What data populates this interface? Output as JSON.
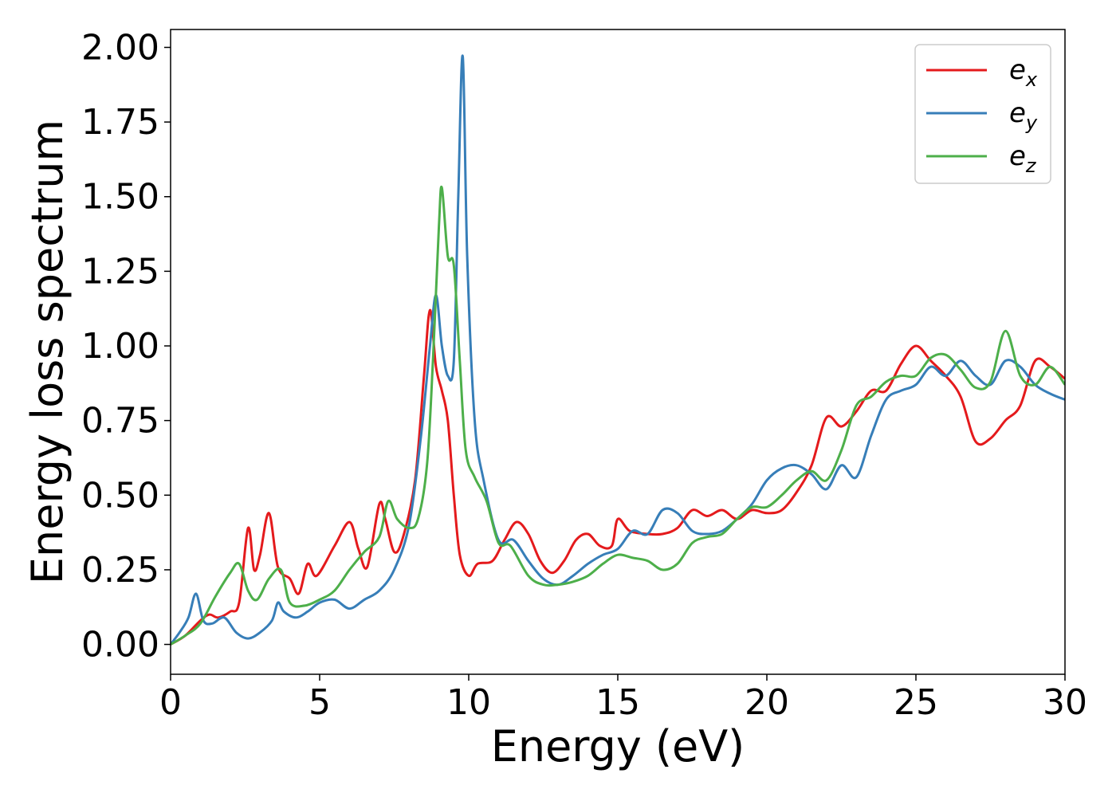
{
  "chart_data": {
    "type": "line",
    "xlabel": "Energy (eV)",
    "ylabel": "Energy loss spectrum",
    "xlim": [
      0,
      30
    ],
    "ylim": [
      -0.1,
      2.06
    ],
    "xticks": [
      0,
      5,
      10,
      15,
      20,
      25,
      30
    ],
    "yticks": [
      0.0,
      0.25,
      0.5,
      0.75,
      1.0,
      1.25,
      1.5,
      1.75,
      2.0
    ],
    "xtick_labels": [
      "0",
      "5",
      "10",
      "15",
      "20",
      "25",
      "30"
    ],
    "ytick_labels": [
      "0.00",
      "0.25",
      "0.50",
      "0.75",
      "1.00",
      "1.25",
      "1.50",
      "1.75",
      "2.00"
    ],
    "grid": false,
    "legend_position": "top-right",
    "series": [
      {
        "name": "e_x",
        "label_base": "e",
        "label_sub": "x",
        "color": "#e41a1c",
        "x": [
          0,
          0.5,
          1.0,
          1.3,
          1.6,
          2.0,
          2.3,
          2.6,
          2.8,
          3.0,
          3.3,
          3.6,
          4.0,
          4.3,
          4.6,
          4.9,
          5.5,
          6.0,
          6.3,
          6.6,
          7.0,
          7.2,
          7.5,
          7.8,
          8.2,
          8.5,
          8.7,
          8.9,
          9.1,
          9.3,
          9.5,
          9.7,
          10.0,
          10.3,
          10.8,
          11.2,
          11.6,
          12.0,
          12.4,
          12.8,
          13.2,
          13.6,
          14.0,
          14.4,
          14.8,
          15.0,
          15.4,
          16.0,
          16.5,
          17.0,
          17.5,
          18.0,
          18.5,
          19.0,
          19.5,
          20.0,
          20.5,
          21.0,
          21.5,
          22.0,
          22.5,
          23.0,
          23.5,
          24.0,
          24.5,
          25.0,
          25.5,
          26.0,
          26.5,
          27.0,
          27.5,
          28.0,
          28.5,
          29.0,
          29.5,
          30.0
        ],
        "y": [
          0.0,
          0.03,
          0.08,
          0.1,
          0.09,
          0.11,
          0.14,
          0.39,
          0.25,
          0.3,
          0.44,
          0.26,
          0.22,
          0.17,
          0.27,
          0.23,
          0.33,
          0.41,
          0.32,
          0.26,
          0.47,
          0.42,
          0.31,
          0.36,
          0.55,
          0.9,
          1.12,
          0.93,
          0.85,
          0.75,
          0.5,
          0.3,
          0.23,
          0.27,
          0.28,
          0.35,
          0.41,
          0.37,
          0.28,
          0.24,
          0.28,
          0.35,
          0.37,
          0.33,
          0.33,
          0.42,
          0.38,
          0.37,
          0.37,
          0.39,
          0.45,
          0.43,
          0.45,
          0.42,
          0.45,
          0.44,
          0.45,
          0.51,
          0.6,
          0.76,
          0.73,
          0.78,
          0.85,
          0.85,
          0.94,
          1.0,
          0.95,
          0.9,
          0.83,
          0.68,
          0.69,
          0.75,
          0.8,
          0.95,
          0.93,
          0.89
        ]
      },
      {
        "name": "e_y",
        "label_base": "e",
        "label_sub": "y",
        "color": "#377eb8",
        "x": [
          0,
          0.3,
          0.6,
          0.85,
          1.1,
          1.4,
          1.8,
          2.2,
          2.6,
          3.0,
          3.4,
          3.6,
          3.8,
          4.2,
          4.6,
          5.0,
          5.5,
          6.0,
          6.5,
          7.0,
          7.5,
          8.0,
          8.4,
          8.7,
          8.9,
          9.1,
          9.3,
          9.5,
          9.65,
          9.8,
          9.95,
          10.2,
          10.5,
          11.0,
          11.5,
          12.0,
          12.5,
          13.0,
          13.5,
          14.0,
          14.5,
          15.0,
          15.5,
          16.0,
          16.5,
          17.0,
          17.5,
          18.0,
          18.5,
          19.0,
          19.5,
          20.0,
          20.5,
          21.0,
          21.5,
          22.0,
          22.5,
          23.0,
          23.5,
          24.0,
          24.5,
          25.0,
          25.5,
          26.0,
          26.5,
          27.0,
          27.5,
          28.0,
          28.5,
          29.0,
          29.5,
          30.0
        ],
        "y": [
          0.0,
          0.04,
          0.09,
          0.17,
          0.08,
          0.07,
          0.09,
          0.04,
          0.02,
          0.04,
          0.08,
          0.14,
          0.11,
          0.09,
          0.11,
          0.14,
          0.15,
          0.12,
          0.15,
          0.18,
          0.25,
          0.4,
          0.7,
          1.0,
          1.17,
          1.0,
          0.9,
          0.95,
          1.5,
          1.97,
          1.3,
          0.75,
          0.55,
          0.35,
          0.35,
          0.28,
          0.22,
          0.2,
          0.23,
          0.27,
          0.3,
          0.32,
          0.38,
          0.37,
          0.45,
          0.44,
          0.38,
          0.37,
          0.38,
          0.42,
          0.47,
          0.55,
          0.59,
          0.6,
          0.57,
          0.52,
          0.6,
          0.56,
          0.7,
          0.82,
          0.85,
          0.87,
          0.93,
          0.9,
          0.95,
          0.9,
          0.87,
          0.95,
          0.93,
          0.87,
          0.84,
          0.82
        ]
      },
      {
        "name": "e_z",
        "label_base": "e",
        "label_sub": "z",
        "color": "#4daf4a",
        "x": [
          0,
          0.5,
          1.0,
          1.5,
          2.0,
          2.3,
          2.6,
          2.9,
          3.3,
          3.7,
          4.0,
          4.5,
          5.0,
          5.5,
          6.0,
          6.5,
          7.0,
          7.3,
          7.6,
          8.0,
          8.3,
          8.6,
          8.8,
          9.0,
          9.1,
          9.3,
          9.5,
          9.7,
          9.9,
          10.2,
          10.6,
          11.0,
          11.4,
          12.0,
          12.5,
          13.0,
          13.5,
          14.0,
          14.5,
          15.0,
          15.5,
          16.0,
          16.5,
          17.0,
          17.5,
          18.0,
          18.5,
          19.0,
          19.5,
          20.0,
          20.5,
          21.0,
          21.5,
          22.0,
          22.5,
          23.0,
          23.5,
          24.0,
          24.5,
          25.0,
          25.5,
          26.0,
          26.5,
          27.0,
          27.5,
          28.0,
          28.5,
          29.0,
          29.5,
          30.0
        ],
        "y": [
          0.0,
          0.03,
          0.07,
          0.16,
          0.24,
          0.27,
          0.18,
          0.15,
          0.22,
          0.25,
          0.14,
          0.13,
          0.15,
          0.18,
          0.25,
          0.31,
          0.36,
          0.48,
          0.42,
          0.39,
          0.42,
          0.6,
          0.95,
          1.4,
          1.53,
          1.3,
          1.27,
          0.95,
          0.65,
          0.56,
          0.48,
          0.34,
          0.33,
          0.23,
          0.2,
          0.2,
          0.21,
          0.23,
          0.27,
          0.3,
          0.29,
          0.28,
          0.25,
          0.27,
          0.34,
          0.36,
          0.37,
          0.42,
          0.46,
          0.46,
          0.5,
          0.55,
          0.58,
          0.55,
          0.65,
          0.8,
          0.83,
          0.88,
          0.9,
          0.9,
          0.96,
          0.97,
          0.92,
          0.86,
          0.88,
          1.05,
          0.9,
          0.87,
          0.93,
          0.87
        ]
      }
    ]
  }
}
